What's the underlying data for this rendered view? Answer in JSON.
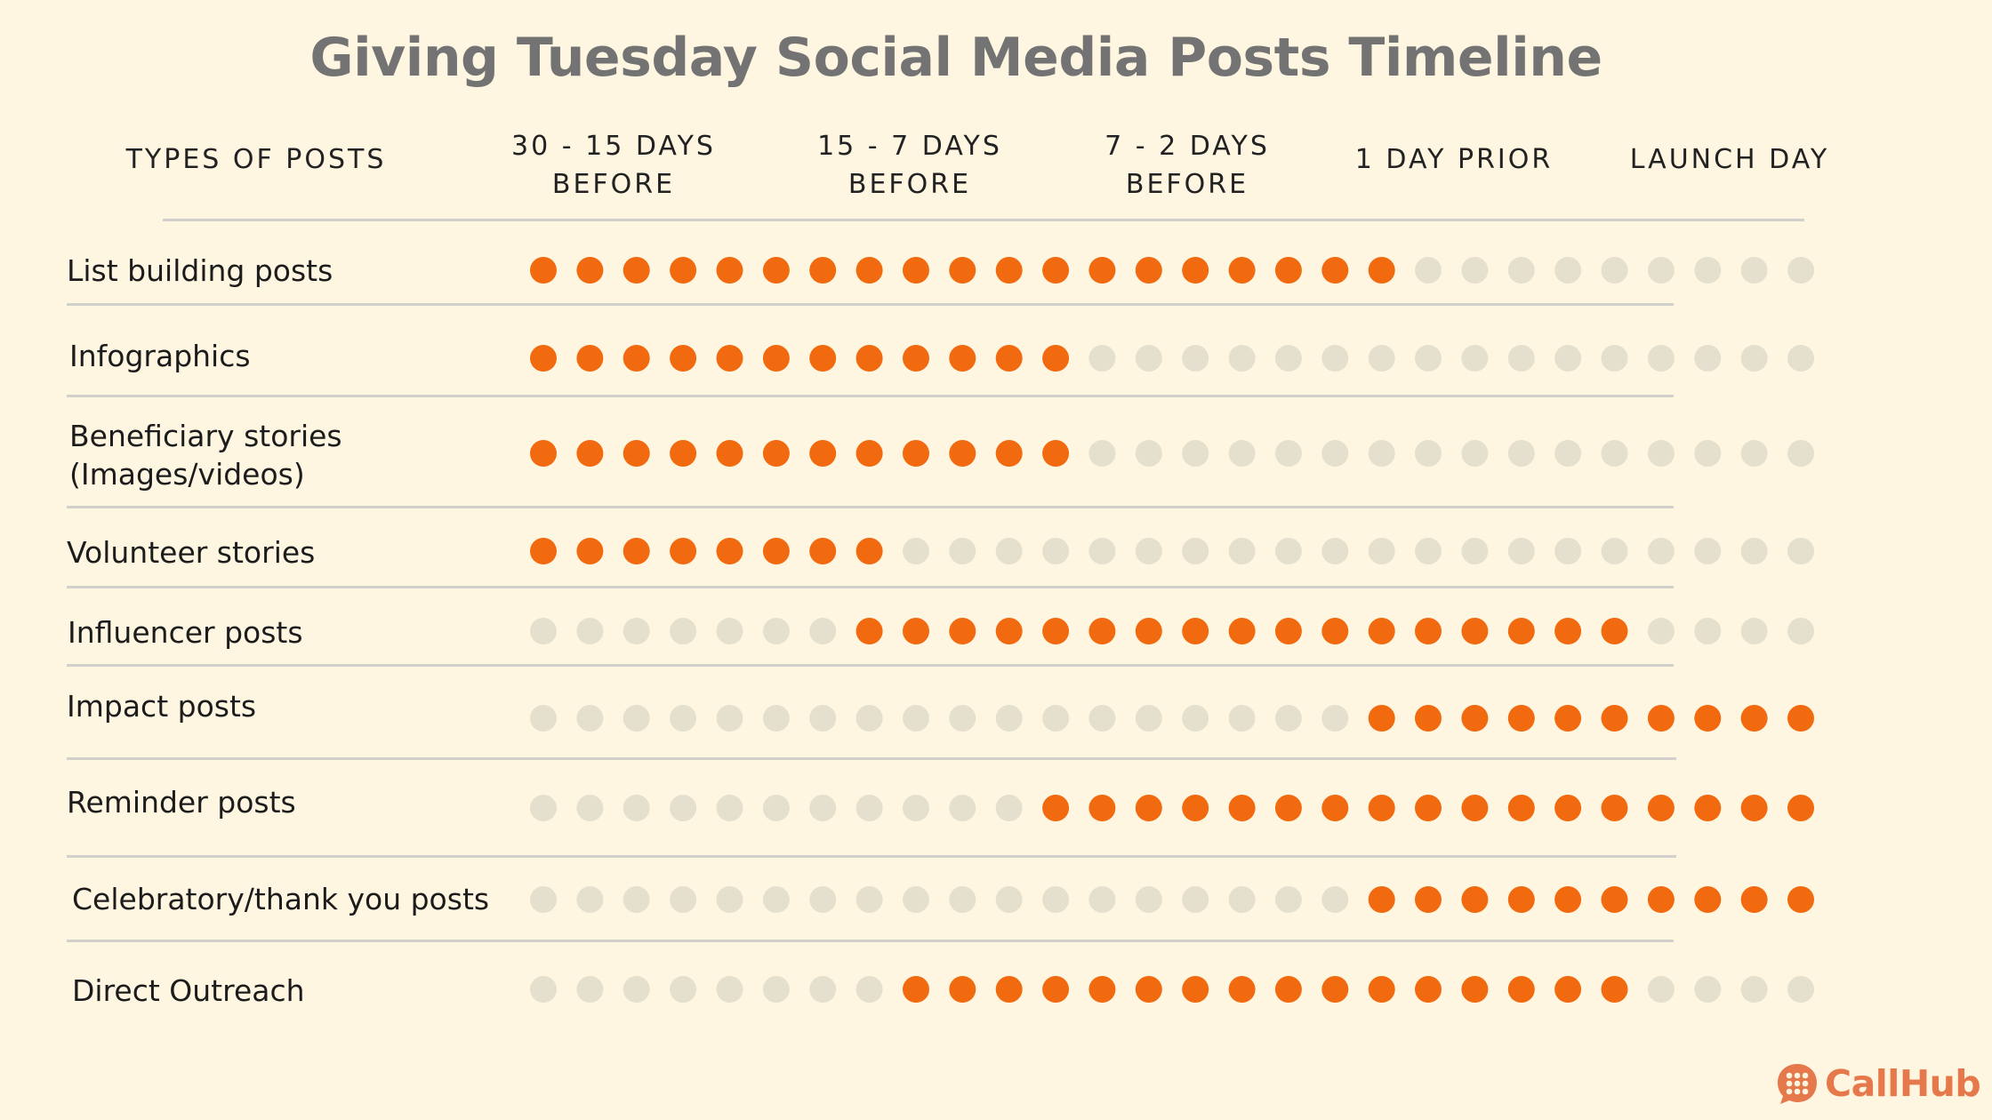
{
  "title": "Giving Tuesday Social Media Posts Timeline",
  "branding": {
    "logo_text": "CallHub",
    "logo_icon": "chat-bubble-dots-icon"
  },
  "colors": {
    "background": "#fef6e1",
    "active_dot": "#f26a0f",
    "inactive_dot": "#e5dfcd",
    "title": "#737373",
    "brand": "#e5794b"
  },
  "columns": {
    "types": "TYPES OF POSTS",
    "c1": "30 - 15 DAYS\nBEFORE",
    "c2": "15 - 7 DAYS\nBEFORE",
    "c3": "7 - 2 DAYS\nBEFORE",
    "c4": "1 DAY PRIOR",
    "c5": "LAUNCH DAY"
  },
  "rows": [
    {
      "label": "List building posts"
    },
    {
      "label": "Infographics"
    },
    {
      "label": "Beneficiary stories\n(Images/videos)"
    },
    {
      "label": "Volunteer stories"
    },
    {
      "label": "Influencer posts"
    },
    {
      "label": "Impact posts"
    },
    {
      "label": "Reminder posts"
    },
    {
      "label": "Celebratory/thank you posts"
    },
    {
      "label": "Direct Outreach"
    }
  ],
  "chart_data": {
    "type": "table",
    "title": "Giving Tuesday Social Media Posts Timeline",
    "columns": [
      "30 - 15 DAYS BEFORE",
      "15 - 7 DAYS BEFORE",
      "7 - 2 DAYS BEFORE",
      "1 DAY PRIOR",
      "LAUNCH DAY"
    ],
    "dots_per_row": 28,
    "series": [
      {
        "name": "List building posts",
        "active_start": 1,
        "active_end": 19
      },
      {
        "name": "Infographics",
        "active_start": 1,
        "active_end": 12
      },
      {
        "name": "Beneficiary stories (Images/videos)",
        "active_start": 1,
        "active_end": 12
      },
      {
        "name": "Volunteer stories",
        "active_start": 1,
        "active_end": 8
      },
      {
        "name": "Influencer posts",
        "active_start": 8,
        "active_end": 24
      },
      {
        "name": "Impact posts",
        "active_start": 19,
        "active_end": 28
      },
      {
        "name": "Reminder posts",
        "active_start": 12,
        "active_end": 28
      },
      {
        "name": "Celebratory/thank you posts",
        "active_start": 19,
        "active_end": 28
      },
      {
        "name": "Direct Outreach",
        "active_start": 9,
        "active_end": 24
      }
    ]
  }
}
